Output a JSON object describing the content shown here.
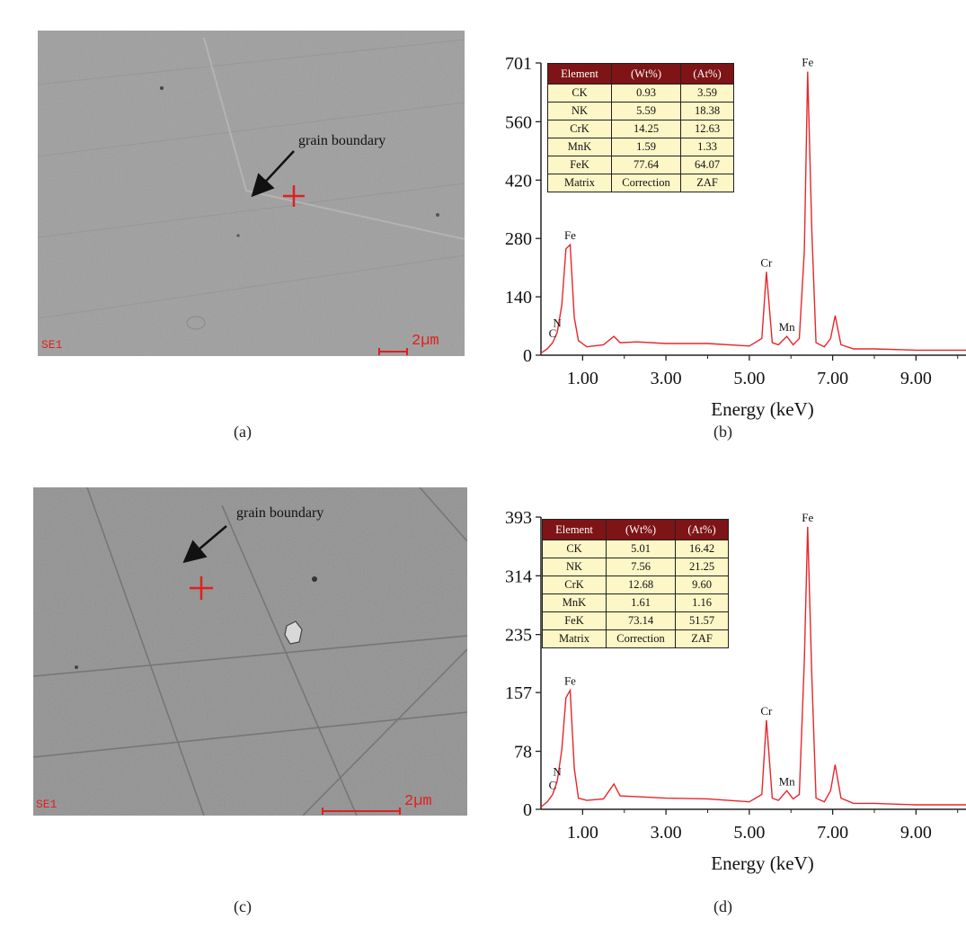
{
  "panels": {
    "a": {
      "caption": "(a)",
      "detector_label": "SE1",
      "scale_label": "2µm",
      "annotation": "grain boundary"
    },
    "b": {
      "caption": "(b)",
      "table": {
        "headers": [
          "Element",
          "(Wt%)",
          "(At%)"
        ],
        "rows": [
          [
            "CK",
            "0.93",
            "3.59"
          ],
          [
            "NK",
            "5.59",
            "18.38"
          ],
          [
            "CrK",
            "14.25",
            "12.63"
          ],
          [
            "MnK",
            "1.59",
            "1.33"
          ],
          [
            "FeK",
            "77.64",
            "64.07"
          ],
          [
            "Matrix",
            "Correction",
            "ZAF"
          ]
        ]
      }
    },
    "c": {
      "caption": "(c)",
      "detector_label": "SE1",
      "scale_label": "2µm",
      "annotation": "grain boundary"
    },
    "d": {
      "caption": "(d)",
      "table": {
        "headers": [
          "Element",
          "(Wt%)",
          "(At%)"
        ],
        "rows": [
          [
            "CK",
            "5.01",
            "16.42"
          ],
          [
            "NK",
            "7.56",
            "21.25"
          ],
          [
            "CrK",
            "12.68",
            "9.60"
          ],
          [
            "MnK",
            "1.61",
            "1.16"
          ],
          [
            "FeK",
            "73.14",
            "51.57"
          ],
          [
            "Matrix",
            "Correction",
            "ZAF"
          ]
        ]
      }
    }
  },
  "chart_data": [
    {
      "type": "line",
      "panel": "b",
      "xlabel": "Energy (keV)",
      "ylabel": "",
      "xlim": [
        0,
        10.2
      ],
      "ylim": [
        0,
        701
      ],
      "x_ticks": [
        "1.00",
        "3.00",
        "5.00",
        "7.00",
        "9.00"
      ],
      "x_tick_values": [
        1,
        3,
        5,
        7,
        9
      ],
      "y_ticks": [
        "0",
        "140",
        "280",
        "420",
        "560",
        "701"
      ],
      "y_tick_values": [
        0,
        140,
        280,
        420,
        560,
        701
      ],
      "color": "#e8262a",
      "peaks": [
        {
          "label": "C",
          "x": 0.28,
          "y": 30
        },
        {
          "label": "N",
          "x": 0.39,
          "y": 55
        },
        {
          "label": "Fe",
          "x": 0.7,
          "y": 265
        },
        {
          "label": "Cr",
          "x": 5.41,
          "y": 200
        },
        {
          "label": "Mn",
          "x": 5.9,
          "y": 45
        },
        {
          "label": "Fe",
          "x": 6.4,
          "y": 680
        }
      ],
      "series": [
        {
          "x": [
            0.0,
            0.15,
            0.28,
            0.39,
            0.5,
            0.6,
            0.7,
            0.8,
            0.9,
            1.1,
            1.5,
            1.75,
            1.9,
            2.3,
            3.0,
            4.0,
            5.0,
            5.3,
            5.41,
            5.55,
            5.7,
            5.9,
            6.05,
            6.2,
            6.32,
            6.4,
            6.5,
            6.6,
            6.8,
            6.95,
            7.06,
            7.2,
            7.5,
            8.0,
            9.0,
            10.2
          ],
          "y": [
            5,
            15,
            30,
            55,
            120,
            255,
            265,
            90,
            35,
            20,
            25,
            45,
            30,
            32,
            28,
            28,
            22,
            40,
            200,
            30,
            25,
            45,
            25,
            40,
            250,
            680,
            300,
            30,
            20,
            40,
            95,
            25,
            15,
            15,
            12,
            12
          ]
        }
      ]
    },
    {
      "type": "line",
      "panel": "d",
      "xlabel": "Energy (keV)",
      "ylabel": "",
      "xlim": [
        0,
        10.2
      ],
      "ylim": [
        0,
        393
      ],
      "x_ticks": [
        "1.00",
        "3.00",
        "5.00",
        "7.00",
        "9.00"
      ],
      "x_tick_values": [
        1,
        3,
        5,
        7,
        9
      ],
      "y_ticks": [
        "0",
        "78",
        "157",
        "235",
        "314",
        "393"
      ],
      "y_tick_values": [
        0,
        78,
        157,
        235,
        314,
        393
      ],
      "color": "#e8262a",
      "peaks": [
        {
          "label": "C",
          "x": 0.28,
          "y": 20
        },
        {
          "label": "N",
          "x": 0.39,
          "y": 38
        },
        {
          "label": "Fe",
          "x": 0.7,
          "y": 160
        },
        {
          "label": "Cr",
          "x": 5.41,
          "y": 120
        },
        {
          "label": "Mn",
          "x": 5.9,
          "y": 25
        },
        {
          "label": "Fe",
          "x": 6.4,
          "y": 380
        }
      ],
      "series": [
        {
          "x": [
            0.0,
            0.15,
            0.28,
            0.39,
            0.5,
            0.6,
            0.7,
            0.8,
            0.9,
            1.1,
            1.5,
            1.75,
            1.9,
            2.3,
            3.0,
            4.0,
            5.0,
            5.3,
            5.41,
            5.55,
            5.7,
            5.9,
            6.05,
            6.2,
            6.32,
            6.4,
            6.5,
            6.6,
            6.8,
            6.95,
            7.06,
            7.2,
            7.5,
            8.0,
            9.0,
            10.2
          ],
          "y": [
            3,
            10,
            20,
            38,
            80,
            150,
            160,
            55,
            15,
            12,
            14,
            34,
            18,
            17,
            15,
            14,
            10,
            20,
            120,
            15,
            12,
            25,
            14,
            20,
            200,
            380,
            180,
            15,
            10,
            25,
            60,
            15,
            8,
            8,
            6,
            6
          ]
        }
      ]
    }
  ]
}
